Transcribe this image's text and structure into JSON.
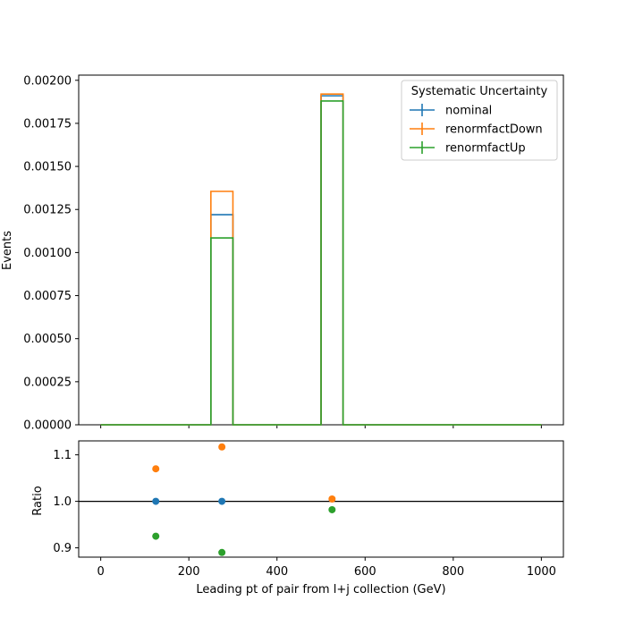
{
  "chart_data": [
    {
      "type": "step",
      "ylabel": "Events",
      "xlim": [
        -50,
        1050
      ],
      "ylim": [
        0,
        0.00203
      ],
      "yticks": [
        "0.00000",
        "0.00025",
        "0.00050",
        "0.00075",
        "0.00100",
        "0.00125",
        "0.00150",
        "0.00175",
        "0.00200"
      ],
      "ytick_values": [
        0,
        0.00025,
        0.0005,
        0.00075,
        0.001,
        0.00125,
        0.0015,
        0.00175,
        0.002
      ],
      "xtick_values": [
        0,
        200,
        400,
        600,
        800,
        1000
      ],
      "bin_edges": [
        0,
        250,
        300,
        500,
        550,
        1000
      ],
      "series": [
        {
          "name": "nominal",
          "color": "#1f77b4",
          "values": [
            0,
            0.00122,
            0,
            0.00191,
            0
          ]
        },
        {
          "name": "renormfactDown",
          "color": "#ff7f0e",
          "values": [
            0,
            0.001355,
            0,
            0.00192,
            0
          ]
        },
        {
          "name": "renormfactUp",
          "color": "#2ca02c",
          "values": [
            0,
            0.001085,
            0,
            0.00188,
            0
          ]
        }
      ],
      "legend": {
        "title": "Systematic Uncertainty",
        "position": "top-right",
        "entries": [
          "nominal",
          "renormfactDown",
          "renormfactUp"
        ]
      }
    },
    {
      "type": "scatter",
      "xlabel": "Leading pt of pair from l+j collection (GeV)",
      "ylabel": "Ratio",
      "xlim": [
        -50,
        1050
      ],
      "ylim": [
        0.88,
        1.13
      ],
      "xticks": [
        "0",
        "200",
        "400",
        "600",
        "800",
        "1000"
      ],
      "xtick_values": [
        0,
        200,
        400,
        600,
        800,
        1000
      ],
      "yticks": [
        "0.9",
        "1.0",
        "1.1"
      ],
      "ytick_values": [
        0.9,
        1.0,
        1.1
      ],
      "reference_line": 1.0,
      "series": [
        {
          "name": "nominal",
          "color": "#1f77b4",
          "x": [
            125,
            275
          ],
          "y": [
            1.0,
            1.0
          ]
        },
        {
          "name": "renormfactDown",
          "color": "#ff7f0e",
          "x": [
            125,
            275,
            525
          ],
          "y": [
            1.07,
            1.117,
            1.005
          ]
        },
        {
          "name": "renormfactUp",
          "color": "#2ca02c",
          "x": [
            125,
            275,
            525
          ],
          "y": [
            0.925,
            0.89,
            0.982
          ]
        }
      ]
    }
  ]
}
